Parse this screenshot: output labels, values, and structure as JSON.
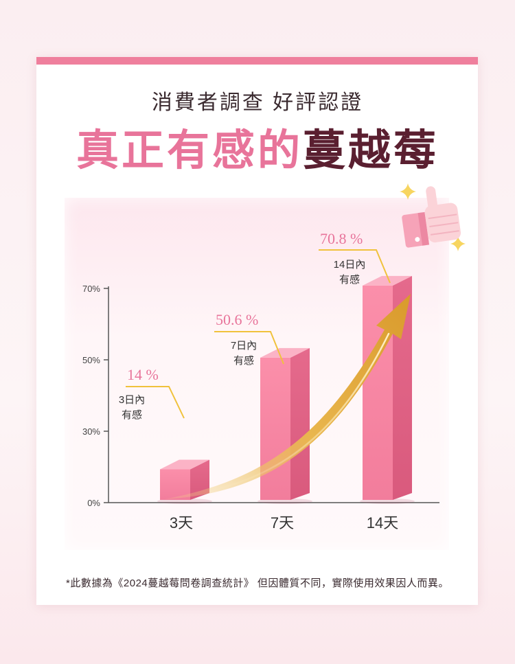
{
  "header": {
    "subtitle": "消費者調查 好評認證",
    "title_part1": "真正有感的",
    "title_part2": "蔓越莓"
  },
  "footnote": "*此數據為《2024蔓越莓問卷調查統計》 但因體質不同，實際使用效果因人而異。",
  "colors": {
    "accent_pink": "#ef7f9d",
    "bar_front": "#f58aa6",
    "bar_side": "#e46688",
    "bar_top": "#fbb3c6",
    "label_pink": "#e8749a",
    "callout_line": "#f0c23c",
    "arrow_gold": "#e7b54a",
    "title_dark": "#5a1f30"
  },
  "icons": [
    "thumbs-up-icon",
    "sparkle-icon"
  ],
  "chart_data": {
    "type": "bar",
    "categories": [
      "3天",
      "7天",
      "14天"
    ],
    "values": [
      14,
      50.6,
      70.8
    ],
    "value_labels": [
      "14 %",
      "50.6 %",
      "70.8 %"
    ],
    "bar_annotations": [
      [
        "3日內",
        "有感"
      ],
      [
        "7日內",
        "有感"
      ],
      [
        "14日內",
        "有感"
      ]
    ],
    "y_ticks": [
      0,
      30,
      50,
      70
    ],
    "y_tick_labels": [
      "0%",
      "30%",
      "50%",
      "70%"
    ],
    "ylim": [
      0,
      70
    ],
    "title": "",
    "xlabel": "",
    "ylabel": "",
    "grid": false,
    "trend_arrow": true
  }
}
